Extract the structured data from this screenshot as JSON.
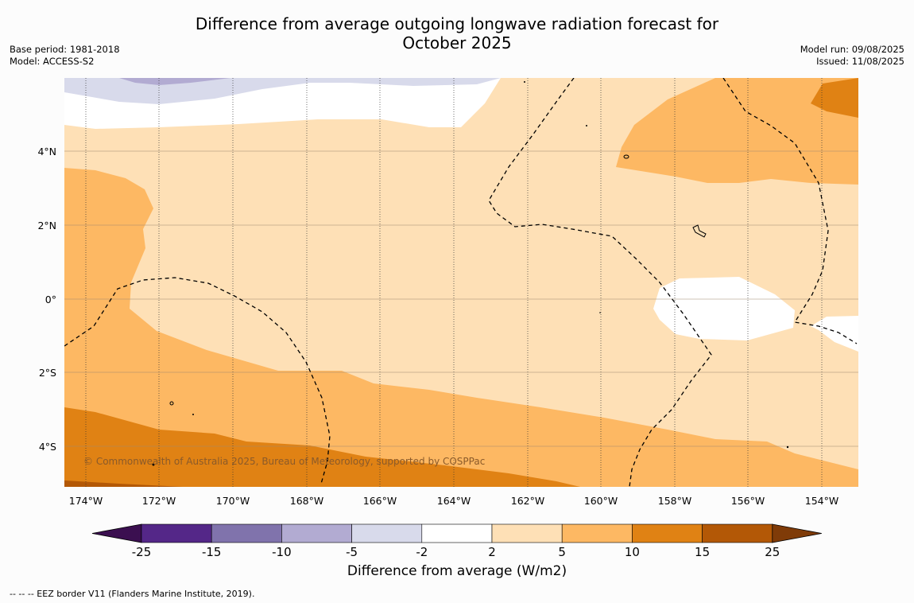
{
  "title_line1": "Difference from average outgoing longwave radiation forecast for",
  "title_line2": "October 2025",
  "base_period": "Base period: 1981-2018",
  "model": "Model: ACCESS-S2",
  "model_run": "Model run: 09/08/2025",
  "issued": "Issued: 11/08/2025",
  "copyright": "© Commonwealth of Australia 2025, Bureau of Meteorology, supported by COSPPac",
  "lon_labels": [
    "174°W",
    "172°W",
    "170°W",
    "168°W",
    "166°W",
    "164°W",
    "162°W",
    "160°W",
    "158°W",
    "156°W",
    "154°W"
  ],
  "lat_labels": [
    "4°N",
    "2°N",
    "0°",
    "2°S",
    "4°S"
  ],
  "colorbar": {
    "ticks": [
      "-25",
      "-15",
      "-10",
      "-5",
      "-2",
      "2",
      "5",
      "10",
      "15",
      "25"
    ],
    "colors": [
      "#3b0f50",
      "#542788",
      "#8073ac",
      "#b2abd2",
      "#d8daeb",
      "#ffffff",
      "#fee0b6",
      "#fdb863",
      "#e08214",
      "#b35806",
      "#7f3b08"
    ],
    "label": "Difference from average (W/m2)"
  },
  "footnote": "--  --  -- EEZ border V11 (Flanders Marine Institute, 2019)."
}
